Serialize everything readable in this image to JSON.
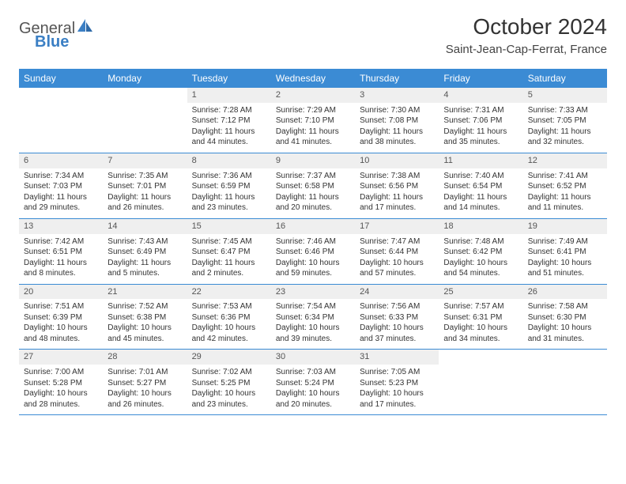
{
  "brand": {
    "general": "General",
    "blue": "Blue"
  },
  "header": {
    "title": "October 2024",
    "location": "Saint-Jean-Cap-Ferrat, France"
  },
  "colors": {
    "header_bg": "#3b8bd4",
    "header_text": "#ffffff",
    "daynum_bg": "#efefef",
    "rule": "#3b8bd4",
    "logo_blue": "#3b7fc4",
    "logo_gray": "#555555"
  },
  "day_names": [
    "Sunday",
    "Monday",
    "Tuesday",
    "Wednesday",
    "Thursday",
    "Friday",
    "Saturday"
  ],
  "weeks": [
    [
      {
        "empty": true
      },
      {
        "empty": true
      },
      {
        "num": "1",
        "sunrise": "Sunrise: 7:28 AM",
        "sunset": "Sunset: 7:12 PM",
        "daylight": "Daylight: 11 hours and 44 minutes."
      },
      {
        "num": "2",
        "sunrise": "Sunrise: 7:29 AM",
        "sunset": "Sunset: 7:10 PM",
        "daylight": "Daylight: 11 hours and 41 minutes."
      },
      {
        "num": "3",
        "sunrise": "Sunrise: 7:30 AM",
        "sunset": "Sunset: 7:08 PM",
        "daylight": "Daylight: 11 hours and 38 minutes."
      },
      {
        "num": "4",
        "sunrise": "Sunrise: 7:31 AM",
        "sunset": "Sunset: 7:06 PM",
        "daylight": "Daylight: 11 hours and 35 minutes."
      },
      {
        "num": "5",
        "sunrise": "Sunrise: 7:33 AM",
        "sunset": "Sunset: 7:05 PM",
        "daylight": "Daylight: 11 hours and 32 minutes."
      }
    ],
    [
      {
        "num": "6",
        "sunrise": "Sunrise: 7:34 AM",
        "sunset": "Sunset: 7:03 PM",
        "daylight": "Daylight: 11 hours and 29 minutes."
      },
      {
        "num": "7",
        "sunrise": "Sunrise: 7:35 AM",
        "sunset": "Sunset: 7:01 PM",
        "daylight": "Daylight: 11 hours and 26 minutes."
      },
      {
        "num": "8",
        "sunrise": "Sunrise: 7:36 AM",
        "sunset": "Sunset: 6:59 PM",
        "daylight": "Daylight: 11 hours and 23 minutes."
      },
      {
        "num": "9",
        "sunrise": "Sunrise: 7:37 AM",
        "sunset": "Sunset: 6:58 PM",
        "daylight": "Daylight: 11 hours and 20 minutes."
      },
      {
        "num": "10",
        "sunrise": "Sunrise: 7:38 AM",
        "sunset": "Sunset: 6:56 PM",
        "daylight": "Daylight: 11 hours and 17 minutes."
      },
      {
        "num": "11",
        "sunrise": "Sunrise: 7:40 AM",
        "sunset": "Sunset: 6:54 PM",
        "daylight": "Daylight: 11 hours and 14 minutes."
      },
      {
        "num": "12",
        "sunrise": "Sunrise: 7:41 AM",
        "sunset": "Sunset: 6:52 PM",
        "daylight": "Daylight: 11 hours and 11 minutes."
      }
    ],
    [
      {
        "num": "13",
        "sunrise": "Sunrise: 7:42 AM",
        "sunset": "Sunset: 6:51 PM",
        "daylight": "Daylight: 11 hours and 8 minutes."
      },
      {
        "num": "14",
        "sunrise": "Sunrise: 7:43 AM",
        "sunset": "Sunset: 6:49 PM",
        "daylight": "Daylight: 11 hours and 5 minutes."
      },
      {
        "num": "15",
        "sunrise": "Sunrise: 7:45 AM",
        "sunset": "Sunset: 6:47 PM",
        "daylight": "Daylight: 11 hours and 2 minutes."
      },
      {
        "num": "16",
        "sunrise": "Sunrise: 7:46 AM",
        "sunset": "Sunset: 6:46 PM",
        "daylight": "Daylight: 10 hours and 59 minutes."
      },
      {
        "num": "17",
        "sunrise": "Sunrise: 7:47 AM",
        "sunset": "Sunset: 6:44 PM",
        "daylight": "Daylight: 10 hours and 57 minutes."
      },
      {
        "num": "18",
        "sunrise": "Sunrise: 7:48 AM",
        "sunset": "Sunset: 6:42 PM",
        "daylight": "Daylight: 10 hours and 54 minutes."
      },
      {
        "num": "19",
        "sunrise": "Sunrise: 7:49 AM",
        "sunset": "Sunset: 6:41 PM",
        "daylight": "Daylight: 10 hours and 51 minutes."
      }
    ],
    [
      {
        "num": "20",
        "sunrise": "Sunrise: 7:51 AM",
        "sunset": "Sunset: 6:39 PM",
        "daylight": "Daylight: 10 hours and 48 minutes."
      },
      {
        "num": "21",
        "sunrise": "Sunrise: 7:52 AM",
        "sunset": "Sunset: 6:38 PM",
        "daylight": "Daylight: 10 hours and 45 minutes."
      },
      {
        "num": "22",
        "sunrise": "Sunrise: 7:53 AM",
        "sunset": "Sunset: 6:36 PM",
        "daylight": "Daylight: 10 hours and 42 minutes."
      },
      {
        "num": "23",
        "sunrise": "Sunrise: 7:54 AM",
        "sunset": "Sunset: 6:34 PM",
        "daylight": "Daylight: 10 hours and 39 minutes."
      },
      {
        "num": "24",
        "sunrise": "Sunrise: 7:56 AM",
        "sunset": "Sunset: 6:33 PM",
        "daylight": "Daylight: 10 hours and 37 minutes."
      },
      {
        "num": "25",
        "sunrise": "Sunrise: 7:57 AM",
        "sunset": "Sunset: 6:31 PM",
        "daylight": "Daylight: 10 hours and 34 minutes."
      },
      {
        "num": "26",
        "sunrise": "Sunrise: 7:58 AM",
        "sunset": "Sunset: 6:30 PM",
        "daylight": "Daylight: 10 hours and 31 minutes."
      }
    ],
    [
      {
        "num": "27",
        "sunrise": "Sunrise: 7:00 AM",
        "sunset": "Sunset: 5:28 PM",
        "daylight": "Daylight: 10 hours and 28 minutes."
      },
      {
        "num": "28",
        "sunrise": "Sunrise: 7:01 AM",
        "sunset": "Sunset: 5:27 PM",
        "daylight": "Daylight: 10 hours and 26 minutes."
      },
      {
        "num": "29",
        "sunrise": "Sunrise: 7:02 AM",
        "sunset": "Sunset: 5:25 PM",
        "daylight": "Daylight: 10 hours and 23 minutes."
      },
      {
        "num": "30",
        "sunrise": "Sunrise: 7:03 AM",
        "sunset": "Sunset: 5:24 PM",
        "daylight": "Daylight: 10 hours and 20 minutes."
      },
      {
        "num": "31",
        "sunrise": "Sunrise: 7:05 AM",
        "sunset": "Sunset: 5:23 PM",
        "daylight": "Daylight: 10 hours and 17 minutes."
      },
      {
        "empty": true
      },
      {
        "empty": true
      }
    ]
  ]
}
